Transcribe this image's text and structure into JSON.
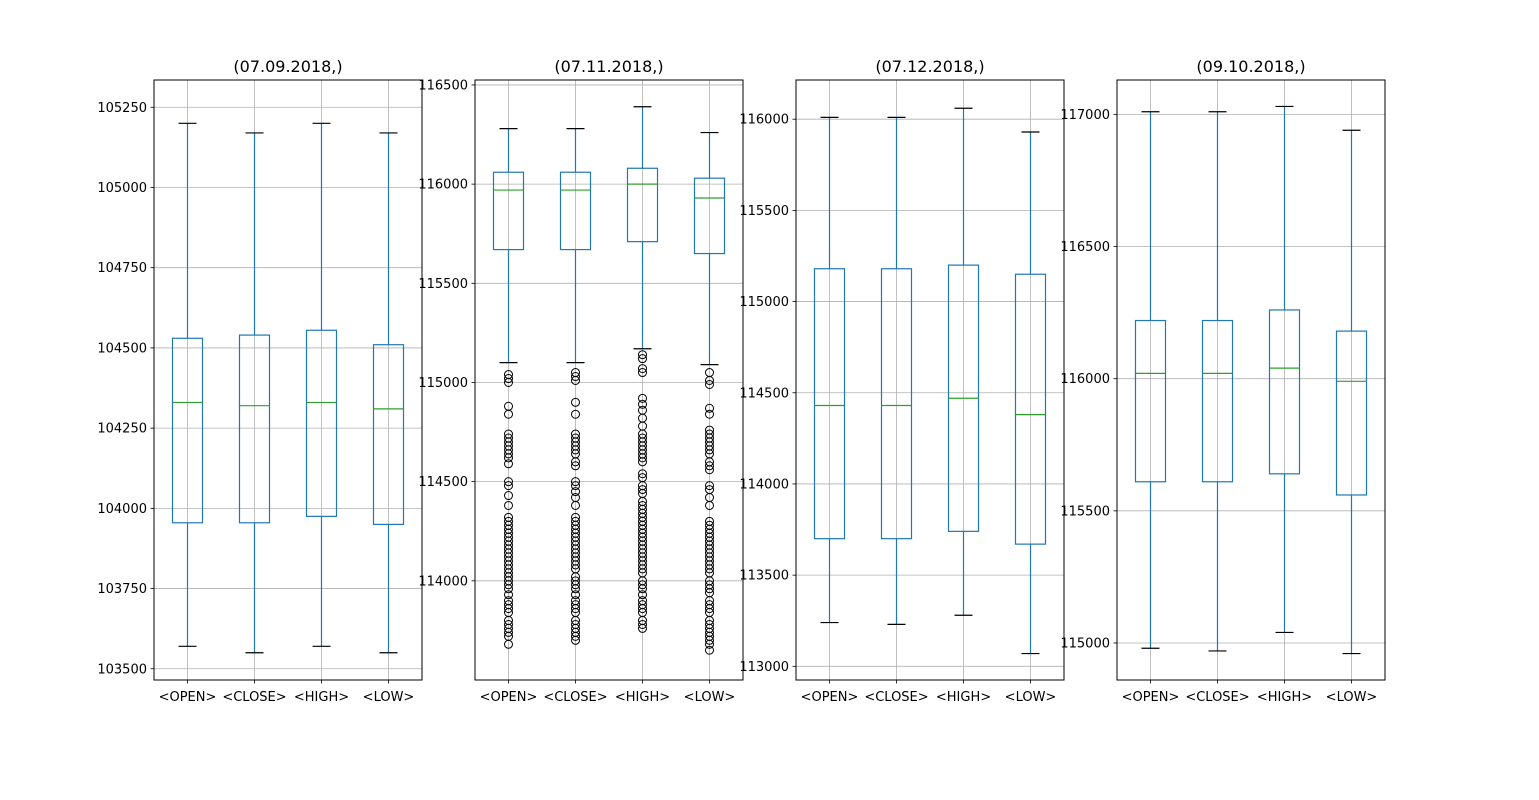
{
  "chart_data": [
    {
      "type": "box",
      "title": "(07.09.2018,)",
      "categories": [
        "<OPEN>",
        "<CLOSE>",
        "<HIGH>",
        "<LOW>"
      ],
      "ylim": [
        103465,
        105335
      ],
      "yticks": [
        103500,
        103750,
        104000,
        104250,
        104500,
        104750,
        105000,
        105250
      ],
      "grid": true,
      "boxes": [
        {
          "whisker_low": 103570,
          "q1": 103955,
          "median": 104330,
          "q3": 104530,
          "whisker_high": 105200,
          "outliers": []
        },
        {
          "whisker_low": 103550,
          "q1": 103955,
          "median": 104320,
          "q3": 104540,
          "whisker_high": 105170,
          "outliers": []
        },
        {
          "whisker_low": 103570,
          "q1": 103975,
          "median": 104330,
          "q3": 104555,
          "whisker_high": 105200,
          "outliers": []
        },
        {
          "whisker_low": 103550,
          "q1": 103950,
          "median": 104310,
          "q3": 104510,
          "whisker_high": 105170,
          "outliers": []
        }
      ]
    },
    {
      "type": "box",
      "title": "(07.11.2018,)",
      "categories": [
        "<OPEN>",
        "<CLOSE>",
        "<HIGH>",
        "<LOW>"
      ],
      "ylim": [
        113500,
        116525
      ],
      "yticks": [
        114000,
        114500,
        115000,
        115500,
        116000,
        116500
      ],
      "grid": true,
      "boxes": [
        {
          "whisker_low": 115100,
          "q1": 115670,
          "median": 115970,
          "q3": 116060,
          "whisker_high": 116280,
          "outliers": [
            115040,
            115020,
            115000,
            114880,
            114840,
            114740,
            114720,
            114700,
            114680,
            114660,
            114640,
            114620,
            114590,
            114500,
            114480,
            114430,
            114380,
            114320,
            114300,
            114280,
            114260,
            114240,
            114220,
            114200,
            114180,
            114160,
            114140,
            114120,
            114100,
            114080,
            114060,
            114040,
            114020,
            114000,
            113980,
            113960,
            113930,
            113900,
            113880,
            113860,
            113840,
            113800,
            113780,
            113760,
            113740,
            113720,
            113680
          ]
        },
        {
          "whisker_low": 115100,
          "q1": 115670,
          "median": 115970,
          "q3": 116060,
          "whisker_high": 116280,
          "outliers": [
            115050,
            115030,
            115010,
            114900,
            114840,
            114740,
            114720,
            114700,
            114680,
            114660,
            114640,
            114600,
            114580,
            114500,
            114480,
            114450,
            114420,
            114380,
            114320,
            114300,
            114280,
            114260,
            114240,
            114220,
            114200,
            114180,
            114160,
            114140,
            114120,
            114100,
            114080,
            114060,
            114020,
            114000,
            113980,
            113960,
            113930,
            113900,
            113880,
            113860,
            113840,
            113800,
            113780,
            113760,
            113740,
            113720,
            113700
          ]
        },
        {
          "whisker_low": 115170,
          "q1": 115710,
          "median": 116000,
          "q3": 116080,
          "whisker_high": 116390,
          "outliers": [
            115140,
            115120,
            115070,
            115050,
            114920,
            114890,
            114860,
            114820,
            114780,
            114740,
            114720,
            114700,
            114680,
            114660,
            114640,
            114620,
            114600,
            114540,
            114520,
            114480,
            114460,
            114440,
            114400,
            114380,
            114360,
            114340,
            114320,
            114300,
            114280,
            114260,
            114240,
            114220,
            114200,
            114180,
            114160,
            114140,
            114120,
            114100,
            114080,
            114060,
            114040,
            114000,
            113980,
            113960,
            113930,
            113900,
            113880,
            113860,
            113840,
            113800,
            113780,
            113760
          ]
        },
        {
          "whisker_low": 115090,
          "q1": 115650,
          "median": 115930,
          "q3": 116030,
          "whisker_high": 116260,
          "outliers": [
            115050,
            115010,
            114990,
            114870,
            114840,
            114760,
            114740,
            114720,
            114700,
            114680,
            114660,
            114640,
            114600,
            114580,
            114560,
            114480,
            114460,
            114420,
            114380,
            114300,
            114280,
            114260,
            114240,
            114220,
            114200,
            114180,
            114160,
            114140,
            114120,
            114100,
            114080,
            114060,
            114040,
            114000,
            113980,
            113960,
            113940,
            113900,
            113880,
            113860,
            113840,
            113800,
            113780,
            113760,
            113740,
            113720,
            113700,
            113680,
            113650
          ]
        }
      ]
    },
    {
      "type": "box",
      "title": "(07.12.2018,)",
      "categories": [
        "<OPEN>",
        "<CLOSE>",
        "<HIGH>",
        "<LOW>"
      ],
      "ylim": [
        112925,
        116215
      ],
      "yticks": [
        113000,
        113500,
        114000,
        114500,
        115000,
        115500,
        116000
      ],
      "grid": true,
      "boxes": [
        {
          "whisker_low": 113240,
          "q1": 113700,
          "median": 114430,
          "q3": 115180,
          "whisker_high": 116010,
          "outliers": []
        },
        {
          "whisker_low": 113230,
          "q1": 113700,
          "median": 114430,
          "q3": 115180,
          "whisker_high": 116010,
          "outliers": []
        },
        {
          "whisker_low": 113280,
          "q1": 113740,
          "median": 114470,
          "q3": 115200,
          "whisker_high": 116060,
          "outliers": []
        },
        {
          "whisker_low": 113070,
          "q1": 113670,
          "median": 114380,
          "q3": 115150,
          "whisker_high": 115930,
          "outliers": []
        }
      ]
    },
    {
      "type": "box",
      "title": "(09.10.2018,)",
      "categories": [
        "<OPEN>",
        "<CLOSE>",
        "<HIGH>",
        "<LOW>"
      ],
      "ylim": [
        114860,
        117130
      ],
      "yticks": [
        115000,
        115500,
        116000,
        116500,
        117000
      ],
      "grid": true,
      "boxes": [
        {
          "whisker_low": 114980,
          "q1": 115610,
          "median": 116020,
          "q3": 116220,
          "whisker_high": 117010,
          "outliers": []
        },
        {
          "whisker_low": 114970,
          "q1": 115610,
          "median": 116020,
          "q3": 116220,
          "whisker_high": 117010,
          "outliers": []
        },
        {
          "whisker_low": 115040,
          "q1": 115640,
          "median": 116040,
          "q3": 116260,
          "whisker_high": 117030,
          "outliers": []
        },
        {
          "whisker_low": 114960,
          "q1": 115560,
          "median": 115990,
          "q3": 116180,
          "whisker_high": 116940,
          "outliers": []
        }
      ]
    }
  ],
  "colors": {
    "box": "#1f77b4",
    "median": "#2ca02c",
    "cap": "#000000",
    "grid": "#b0b0b0",
    "flier": "#000000"
  }
}
